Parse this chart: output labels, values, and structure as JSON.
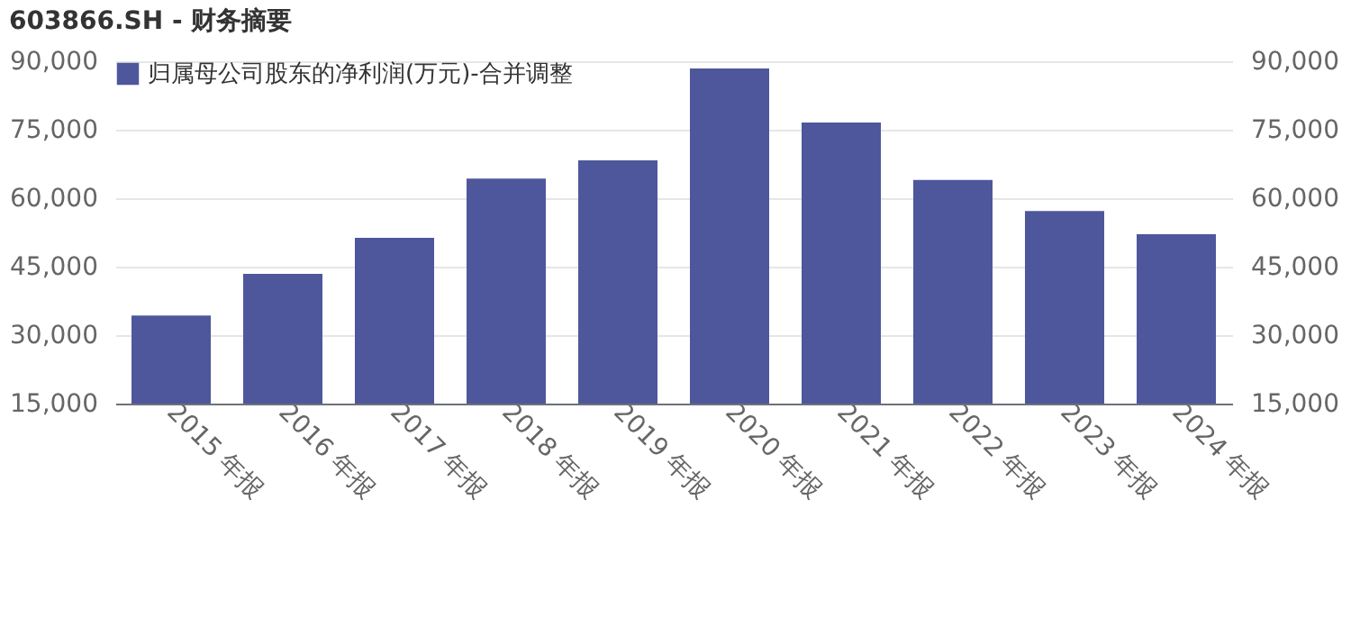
{
  "chart_data": {
    "type": "bar",
    "title": "603866.SH - 财务摘要",
    "categories": [
      "2015 年报",
      "2016 年报",
      "2017 年报",
      "2018 年报",
      "2019 年报",
      "2020 年报",
      "2021 年报",
      "2022 年报",
      "2023 年报",
      "2024 年报"
    ],
    "series": [
      {
        "name": "归属母公司股东的净利润(万元)-合并调整",
        "color": "#4e579b",
        "values": [
          34300,
          43400,
          51300,
          64300,
          68300,
          88400,
          76600,
          64000,
          57200,
          52100
        ]
      }
    ],
    "ylim": [
      15000,
      90000
    ],
    "yticks": [
      {
        "value": 15000,
        "label": "15,000"
      },
      {
        "value": 30000,
        "label": "30,000"
      },
      {
        "value": 45000,
        "label": "45,000"
      },
      {
        "value": 60000,
        "label": "60,000"
      },
      {
        "value": 75000,
        "label": "75,000"
      },
      {
        "value": 90000,
        "label": "90,000"
      }
    ],
    "y2lim": [
      15000,
      90000
    ],
    "y2ticks": [
      {
        "value": 15000,
        "label": "15,000"
      },
      {
        "value": 30000,
        "label": "30,000"
      },
      {
        "value": 45000,
        "label": "45,000"
      },
      {
        "value": 60000,
        "label": "60,000"
      },
      {
        "value": 75000,
        "label": "75,000"
      },
      {
        "value": 90000,
        "label": "90,000"
      }
    ],
    "grid": "y",
    "legend": "top left"
  }
}
